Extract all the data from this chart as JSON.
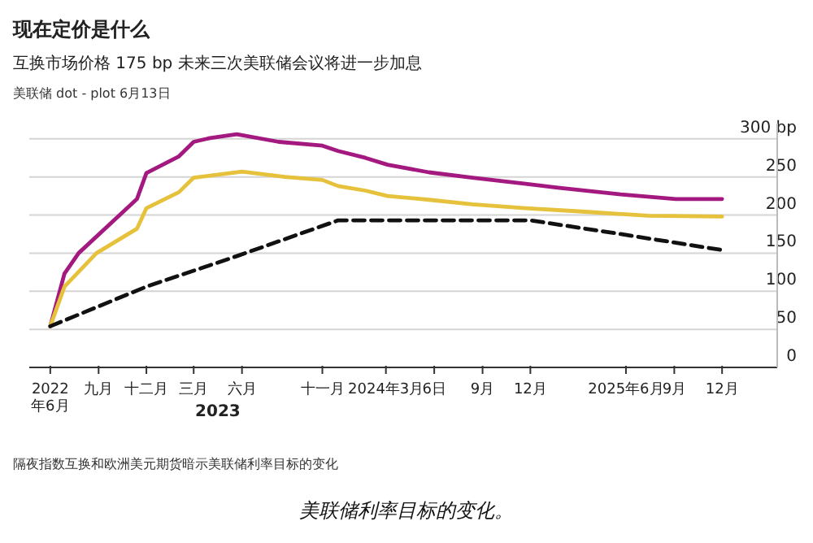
{
  "chart_data": {
    "type": "line",
    "title": "现在定价是什么",
    "subtitle": "互换市场价格 175 bp 未来三次美联储会议将进一步加息",
    "annotations": [
      "美联储 dot - plot 6月13日",
      "2023",
      "隔夜指数互换和欧洲美元期货暗示美联储利率目标的变化",
      "美联储利率目标的变化。"
    ],
    "series": [
      {
        "color": "#a3197f",
        "line_style": "solid",
        "x": [
          "2022-06-01",
          "2022-06-28",
          "2022-07-25",
          "2022-11-13",
          "2022-12-01",
          "2023-02-01",
          "2023-03-01",
          "2023-04-01",
          "2023-05-22",
          "2023-08-10",
          "2023-11-01",
          "2023-12-01",
          "2024-01-22",
          "2024-03-04",
          "2024-05-22",
          "2024-08-13",
          "2024-11-22",
          "2025-01-22",
          "2025-05-22",
          "2025-09-04",
          "2025-12-01"
        ],
        "values": [
          54,
          123,
          150,
          221,
          255,
          277,
          296,
          301,
          306,
          296,
          291,
          284,
          275,
          266,
          256,
          249,
          241,
          236,
          227,
          221,
          221
        ]
      },
      {
        "color": "#e6c23c",
        "line_style": "solid",
        "x": [
          "2022-06-01",
          "2022-06-28",
          "2022-08-28",
          "2022-11-13",
          "2022-12-01",
          "2023-02-01",
          "2023-03-01",
          "2023-06-01",
          "2023-08-22",
          "2023-11-01",
          "2023-12-01",
          "2024-01-22",
          "2024-03-04",
          "2024-05-22",
          "2024-08-13",
          "2024-11-22",
          "2025-03-22",
          "2025-07-13",
          "2025-12-01"
        ],
        "values": [
          54,
          106,
          150,
          182,
          209,
          230,
          249,
          257,
          250,
          246,
          238,
          232,
          225,
          220,
          214,
          209,
          204,
          199,
          198
        ]
      },
      {
        "color": "#111111",
        "line_style": "dashed",
        "x": [
          "2022-06-01",
          "2022-12-01",
          "2023-05-22",
          "2023-12-01",
          "2024-12-01",
          "2025-05-22",
          "2025-12-01"
        ],
        "values": [
          54,
          106,
          146,
          193,
          193,
          175,
          154
        ]
      }
    ],
    "xlim": [
      "2022-04-22",
      "2026-03-16"
    ],
    "ylim": [
      0,
      320
    ],
    "xticks": [
      {
        "value": "2022-06",
        "label": "2022\n年6月"
      },
      {
        "value": "2022-09",
        "label": "九月"
      },
      {
        "value": "2022-12",
        "label": "十二月"
      },
      {
        "value": "2023-03",
        "label": "三月"
      },
      {
        "value": "2023-06",
        "label": "六月"
      },
      {
        "value": "2023-11",
        "label": "十一月"
      },
      {
        "value": "2024-03",
        "label": "2024年3月"
      },
      {
        "value": "2024-06",
        "label": "6日"
      },
      {
        "value": "2024-09",
        "label": "9月"
      },
      {
        "value": "2024-12",
        "label": "12月"
      },
      {
        "value": "2025-06",
        "label": "2025年6月"
      },
      {
        "value": "2025-09",
        "label": "9月"
      },
      {
        "value": "2025-12",
        "label": "12月"
      }
    ],
    "yticks": [
      0,
      50,
      100,
      150,
      200,
      250,
      {
        "value": 300,
        "label": "300 bp"
      }
    ],
    "grid": "y"
  }
}
